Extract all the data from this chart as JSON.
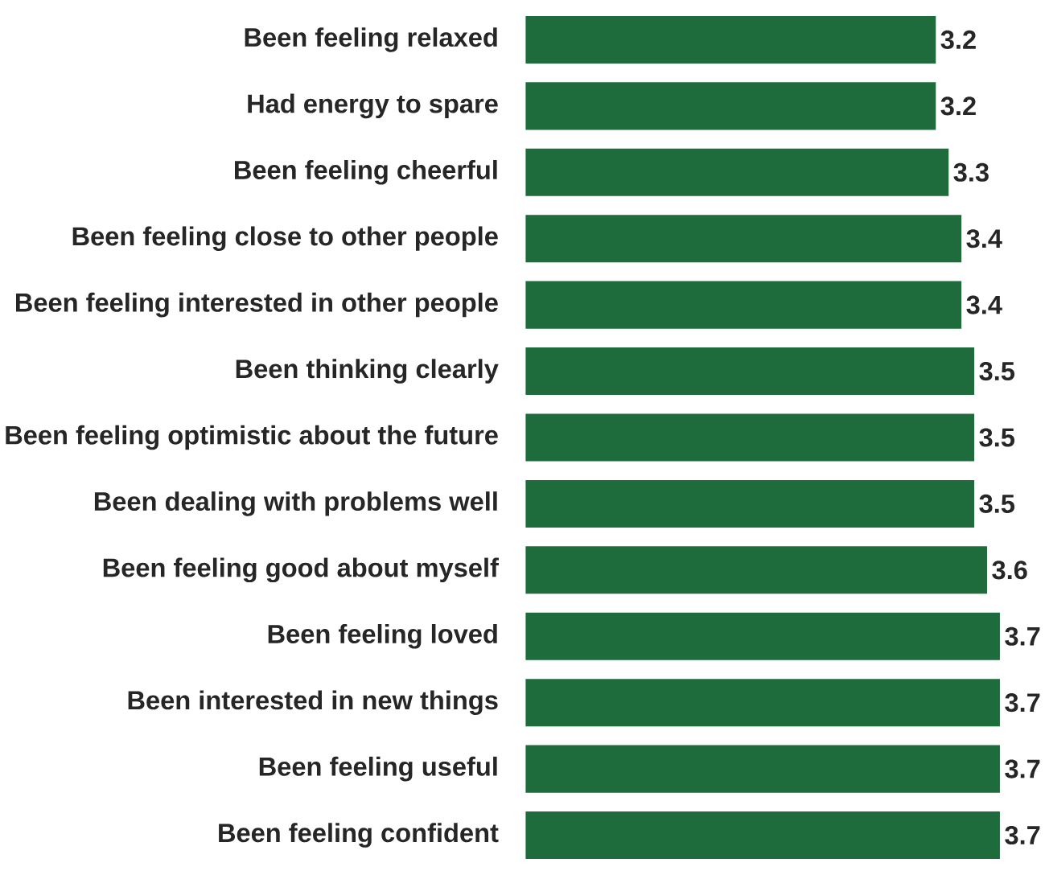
{
  "chart_data": {
    "type": "bar",
    "orientation": "horizontal",
    "data_labels": true,
    "color": "#1e6b3c",
    "categories": [
      "Been feeling relaxed",
      "Had energy to spare",
      "Been feeling cheerful",
      "Been feeling close to other people",
      "Been feeling interested in other people",
      "Been thinking clearly",
      "Been feeling optimistic about the future",
      "Been dealing with problems well",
      "Been feeling good about myself",
      "Been feeling loved",
      "Been interested in new things",
      "Been feeling useful",
      "Been feeling confident"
    ],
    "values": [
      3.2,
      3.2,
      3.3,
      3.4,
      3.4,
      3.5,
      3.5,
      3.5,
      3.6,
      3.7,
      3.7,
      3.7,
      3.7
    ]
  }
}
